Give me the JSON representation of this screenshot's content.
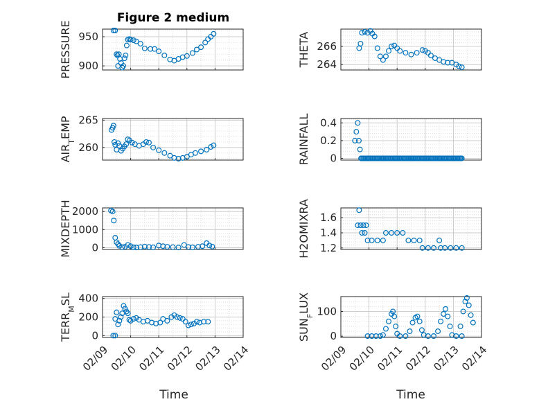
{
  "figure": {
    "title": "Figure 2 medium",
    "xlabel": "Time",
    "marker_color": "#0072BD",
    "axis_color": "#262626",
    "grid_color": "#c8c8c8"
  },
  "chart_data": [
    {
      "type": "scatter",
      "ylabel": "PRESSURE",
      "ylim": [
        893,
        963
      ],
      "yticks": [
        900,
        950
      ],
      "ytick_labels": [
        "900",
        "950"
      ],
      "xlim": [
        0,
        5
      ],
      "xtick_labels": [],
      "title": "Figure 2 medium",
      "points": [
        [
          0.39,
          962
        ],
        [
          0.45,
          962
        ],
        [
          0.5,
          920
        ],
        [
          0.53,
          918
        ],
        [
          0.55,
          900
        ],
        [
          0.58,
          920
        ],
        [
          0.62,
          912
        ],
        [
          0.66,
          905
        ],
        [
          0.7,
          897
        ],
        [
          0.74,
          900
        ],
        [
          0.78,
          913
        ],
        [
          0.82,
          918
        ],
        [
          0.86,
          935
        ],
        [
          0.9,
          945
        ],
        [
          0.95,
          946
        ],
        [
          1.0,
          945
        ],
        [
          1.1,
          944
        ],
        [
          1.2,
          942
        ],
        [
          1.35,
          938
        ],
        [
          1.5,
          930
        ],
        [
          1.7,
          929
        ],
        [
          1.85,
          929
        ],
        [
          2.0,
          925
        ],
        [
          2.2,
          918
        ],
        [
          2.4,
          911
        ],
        [
          2.55,
          909
        ],
        [
          2.7,
          912
        ],
        [
          2.85,
          915
        ],
        [
          3.0,
          917
        ],
        [
          3.2,
          922
        ],
        [
          3.35,
          928
        ],
        [
          3.5,
          932
        ],
        [
          3.65,
          940
        ],
        [
          3.75,
          946
        ],
        [
          3.85,
          950
        ],
        [
          3.95,
          955
        ]
      ]
    },
    {
      "type": "scatter",
      "ylabel": "THETA",
      "ylim": [
        263.4,
        267.9
      ],
      "yticks": [
        264,
        266
      ],
      "ytick_labels": [
        "264",
        "266"
      ],
      "xlim": [
        0,
        5
      ],
      "xtick_labels": [],
      "points": [
        [
          0.65,
          265.8
        ],
        [
          0.7,
          266.3
        ],
        [
          0.75,
          267.5
        ],
        [
          0.85,
          267.6
        ],
        [
          0.95,
          267.5
        ],
        [
          1.05,
          267.7
        ],
        [
          1.12,
          267.4
        ],
        [
          1.2,
          267.1
        ],
        [
          1.3,
          265.8
        ],
        [
          1.4,
          264.9
        ],
        [
          1.5,
          264.5
        ],
        [
          1.6,
          264.9
        ],
        [
          1.7,
          265.5
        ],
        [
          1.8,
          266.0
        ],
        [
          1.9,
          266.1
        ],
        [
          2.0,
          265.8
        ],
        [
          2.1,
          265.5
        ],
        [
          2.3,
          265.3
        ],
        [
          2.5,
          265.1
        ],
        [
          2.7,
          265.3
        ],
        [
          2.9,
          265.6
        ],
        [
          3.0,
          265.5
        ],
        [
          3.1,
          265.3
        ],
        [
          3.2,
          265.0
        ],
        [
          3.35,
          264.7
        ],
        [
          3.5,
          264.5
        ],
        [
          3.65,
          264.3
        ],
        [
          3.8,
          264.2
        ],
        [
          3.95,
          264.2
        ],
        [
          4.1,
          264.0
        ],
        [
          4.2,
          263.8
        ],
        [
          4.3,
          263.7
        ]
      ]
    },
    {
      "type": "scatter",
      "ylabel": "AIR_TEMP",
      "ylim": [
        257.7,
        265.3
      ],
      "yticks": [
        260,
        265
      ],
      "ytick_labels": [
        "260",
        "265"
      ],
      "xlim": [
        0,
        5
      ],
      "xtick_labels": [],
      "points": [
        [
          0.32,
          263.2
        ],
        [
          0.36,
          263.6
        ],
        [
          0.39,
          264.0
        ],
        [
          0.42,
          261.0
        ],
        [
          0.45,
          260.5
        ],
        [
          0.5,
          259.6
        ],
        [
          0.55,
          260.8
        ],
        [
          0.6,
          260.3
        ],
        [
          0.66,
          259.4
        ],
        [
          0.72,
          259.8
        ],
        [
          0.78,
          260.2
        ],
        [
          0.84,
          260.6
        ],
        [
          0.9,
          261.5
        ],
        [
          0.96,
          261.3
        ],
        [
          1.05,
          260.9
        ],
        [
          1.15,
          260.6
        ],
        [
          1.3,
          260.3
        ],
        [
          1.45,
          260.6
        ],
        [
          1.55,
          261.0
        ],
        [
          1.65,
          260.9
        ],
        [
          1.8,
          260.0
        ],
        [
          2.0,
          259.5
        ],
        [
          2.2,
          259.0
        ],
        [
          2.4,
          258.5
        ],
        [
          2.55,
          258.1
        ],
        [
          2.7,
          257.9
        ],
        [
          2.85,
          258.1
        ],
        [
          3.0,
          258.3
        ],
        [
          3.15,
          258.7
        ],
        [
          3.3,
          259.0
        ],
        [
          3.5,
          259.3
        ],
        [
          3.7,
          259.6
        ],
        [
          3.85,
          260.1
        ],
        [
          3.95,
          260.4
        ]
      ]
    },
    {
      "type": "scatter",
      "ylabel": "RAINFALL",
      "ylim": [
        -0.02,
        0.45
      ],
      "yticks": [
        0,
        0.2,
        0.4
      ],
      "ytick_labels": [
        "0",
        "0.2",
        "0.4"
      ],
      "xlim": [
        0,
        5
      ],
      "xtick_labels": [],
      "points": [
        [
          0.5,
          0.2
        ],
        [
          0.55,
          0.3
        ],
        [
          0.6,
          0.4
        ],
        [
          0.64,
          0.2
        ],
        [
          0.68,
          0.1
        ],
        [
          0.72,
          0.0
        ],
        [
          1.0,
          0.0
        ],
        [
          1.5,
          0.0
        ],
        [
          2.0,
          0.0
        ],
        [
          2.5,
          0.0
        ],
        [
          3.0,
          0.0
        ],
        [
          3.5,
          0.0
        ],
        [
          4.0,
          0.0
        ],
        [
          4.3,
          0.0
        ]
      ],
      "baseline": {
        "from": 0.72,
        "to": 4.3,
        "value": 0
      }
    },
    {
      "type": "scatter",
      "ylabel": "MIXDEPTH",
      "ylim": [
        -100,
        2200
      ],
      "yticks": [
        0,
        1000,
        2000
      ],
      "ytick_labels": [
        "0",
        "1000",
        "2000"
      ],
      "xlim": [
        0,
        5
      ],
      "xtick_labels": [],
      "points": [
        [
          0.3,
          2050
        ],
        [
          0.36,
          2000
        ],
        [
          0.4,
          1500
        ],
        [
          0.45,
          550
        ],
        [
          0.5,
          300
        ],
        [
          0.55,
          200
        ],
        [
          0.6,
          100
        ],
        [
          0.7,
          30
        ],
        [
          0.8,
          50
        ],
        [
          0.9,
          150
        ],
        [
          1.0,
          80
        ],
        [
          1.1,
          20
        ],
        [
          1.2,
          10
        ],
        [
          1.35,
          30
        ],
        [
          1.5,
          60
        ],
        [
          1.65,
          40
        ],
        [
          1.8,
          20
        ],
        [
          2.0,
          120
        ],
        [
          2.15,
          80
        ],
        [
          2.3,
          50
        ],
        [
          2.5,
          30
        ],
        [
          2.7,
          10
        ],
        [
          2.9,
          150
        ],
        [
          3.05,
          40
        ],
        [
          3.2,
          20
        ],
        [
          3.4,
          50
        ],
        [
          3.55,
          80
        ],
        [
          3.7,
          250
        ],
        [
          3.8,
          120
        ],
        [
          3.9,
          60
        ]
      ]
    },
    {
      "type": "scatter",
      "ylabel": "H2OMIXRA",
      "ylim": [
        1.18,
        1.73
      ],
      "yticks": [
        1.2,
        1.4,
        1.6
      ],
      "ytick_labels": [
        "1.2",
        "1.4",
        "1.6"
      ],
      "xlim": [
        0,
        5
      ],
      "xtick_labels": [],
      "points": [
        [
          0.65,
          1.7
        ],
        [
          0.6,
          1.5
        ],
        [
          0.7,
          1.5
        ],
        [
          0.8,
          1.5
        ],
        [
          0.9,
          1.5
        ],
        [
          0.75,
          1.4
        ],
        [
          0.85,
          1.4
        ],
        [
          0.95,
          1.3
        ],
        [
          1.1,
          1.3
        ],
        [
          1.3,
          1.3
        ],
        [
          1.5,
          1.3
        ],
        [
          1.6,
          1.4
        ],
        [
          1.8,
          1.4
        ],
        [
          2.0,
          1.4
        ],
        [
          2.2,
          1.4
        ],
        [
          2.4,
          1.3
        ],
        [
          2.6,
          1.3
        ],
        [
          2.8,
          1.3
        ],
        [
          2.9,
          1.2
        ],
        [
          3.1,
          1.2
        ],
        [
          3.3,
          1.2
        ],
        [
          3.5,
          1.3
        ],
        [
          3.55,
          1.2
        ],
        [
          3.7,
          1.2
        ],
        [
          3.9,
          1.2
        ],
        [
          4.1,
          1.2
        ],
        [
          4.3,
          1.2
        ]
      ]
    },
    {
      "type": "scatter",
      "ylabel": "TERR_MSL",
      "ylim": [
        -20,
        420
      ],
      "yticks": [
        0,
        200,
        400
      ],
      "ytick_labels": [
        "0",
        "200",
        "400"
      ],
      "xlim": [
        0,
        5
      ],
      "xtick_labels": [
        "02/09",
        "02/10",
        "02/11",
        "02/12",
        "02/13",
        "02/14"
      ],
      "points": [
        [
          0.38,
          0
        ],
        [
          0.45,
          0
        ],
        [
          0.45,
          180
        ],
        [
          0.5,
          250
        ],
        [
          0.55,
          120
        ],
        [
          0.6,
          160
        ],
        [
          0.65,
          200
        ],
        [
          0.7,
          240
        ],
        [
          0.75,
          320
        ],
        [
          0.8,
          290
        ],
        [
          0.85,
          260
        ],
        [
          0.9,
          240
        ],
        [
          0.95,
          170
        ],
        [
          1.0,
          160
        ],
        [
          1.1,
          180
        ],
        [
          1.2,
          190
        ],
        [
          1.3,
          170
        ],
        [
          1.45,
          150
        ],
        [
          1.6,
          160
        ],
        [
          1.75,
          140
        ],
        [
          1.9,
          130
        ],
        [
          2.05,
          140
        ],
        [
          2.15,
          180
        ],
        [
          2.3,
          160
        ],
        [
          2.45,
          200
        ],
        [
          2.55,
          220
        ],
        [
          2.65,
          200
        ],
        [
          2.75,
          190
        ],
        [
          2.85,
          180
        ],
        [
          2.95,
          150
        ],
        [
          3.05,
          110
        ],
        [
          3.15,
          120
        ],
        [
          3.25,
          130
        ],
        [
          3.35,
          150
        ],
        [
          3.45,
          140
        ],
        [
          3.6,
          150
        ],
        [
          3.75,
          150
        ]
      ]
    },
    {
      "type": "scatter",
      "ylabel": "SUN_FLUX",
      "ylim": [
        -5,
        160
      ],
      "yticks": [
        0,
        100
      ],
      "ytick_labels": [
        "0",
        "100"
      ],
      "xlim": [
        0,
        5
      ],
      "xtick_labels": [
        "02/09",
        "02/10",
        "02/11",
        "02/12",
        "02/13",
        "02/14"
      ],
      "points": [
        [
          0.95,
          0
        ],
        [
          1.1,
          0
        ],
        [
          1.25,
          0
        ],
        [
          1.4,
          0
        ],
        [
          1.5,
          5
        ],
        [
          1.6,
          30
        ],
        [
          1.7,
          60
        ],
        [
          1.8,
          90
        ],
        [
          1.85,
          100
        ],
        [
          1.9,
          80
        ],
        [
          1.95,
          40
        ],
        [
          2.0,
          10
        ],
        [
          2.1,
          0
        ],
        [
          2.3,
          0
        ],
        [
          2.45,
          20
        ],
        [
          2.55,
          55
        ],
        [
          2.65,
          75
        ],
        [
          2.72,
          80
        ],
        [
          2.8,
          60
        ],
        [
          2.88,
          25
        ],
        [
          2.95,
          5
        ],
        [
          3.1,
          0
        ],
        [
          3.3,
          0
        ],
        [
          3.45,
          20
        ],
        [
          3.55,
          60
        ],
        [
          3.65,
          90
        ],
        [
          3.72,
          110
        ],
        [
          3.8,
          80
        ],
        [
          3.88,
          40
        ],
        [
          3.95,
          5
        ],
        [
          4.1,
          0
        ],
        [
          4.25,
          40
        ],
        [
          4.35,
          100
        ],
        [
          4.42,
          140
        ],
        [
          4.48,
          155
        ],
        [
          4.55,
          125
        ],
        [
          4.62,
          85
        ],
        [
          4.7,
          55
        ],
        [
          4.3,
          0
        ]
      ]
    }
  ]
}
